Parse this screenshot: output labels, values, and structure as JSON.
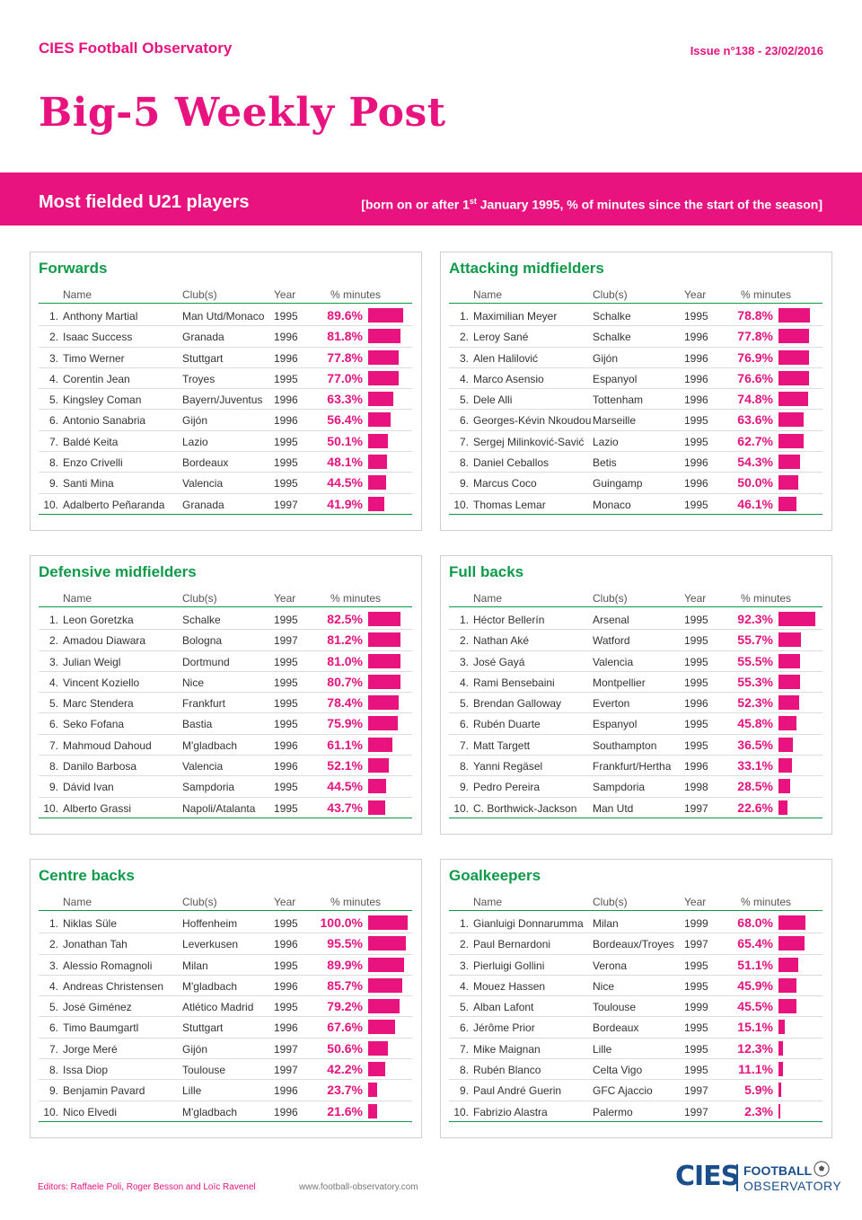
{
  "header": {
    "org": "CIES Football Observatory",
    "issue": "Issue n°138 - 23/02/2016",
    "title": "Big-5 Weekly Post"
  },
  "banner": {
    "title": "Most fielded U21 players",
    "sub_pre": "[born on or after 1",
    "sub_sup": "st",
    "sub_post": " January 1995, % of minutes since the start of the season]"
  },
  "columns": {
    "name": "Name",
    "club": "Club(s)",
    "year": "Year",
    "pct": "% minutes"
  },
  "sections": [
    {
      "title": "Forwards",
      "rows": [
        {
          "rank": "1.",
          "name": "Anthony Martial",
          "club": "Man Utd/Monaco",
          "year": "1995",
          "pct": "89.6%",
          "value": 89.6
        },
        {
          "rank": "2.",
          "name": "Isaac Success",
          "club": "Granada",
          "year": "1996",
          "pct": "81.8%",
          "value": 81.8
        },
        {
          "rank": "3.",
          "name": "Timo Werner",
          "club": "Stuttgart",
          "year": "1996",
          "pct": "77.8%",
          "value": 77.8
        },
        {
          "rank": "4.",
          "name": "Corentin Jean",
          "club": "Troyes",
          "year": "1995",
          "pct": "77.0%",
          "value": 77.0
        },
        {
          "rank": "5.",
          "name": "Kingsley Coman",
          "club": "Bayern/Juventus",
          "year": "1996",
          "pct": "63.3%",
          "value": 63.3
        },
        {
          "rank": "6.",
          "name": "Antonio Sanabria",
          "club": "Gijón",
          "year": "1996",
          "pct": "56.4%",
          "value": 56.4
        },
        {
          "rank": "7.",
          "name": "Baldé Keita",
          "club": "Lazio",
          "year": "1995",
          "pct": "50.1%",
          "value": 50.1
        },
        {
          "rank": "8.",
          "name": "Enzo Crivelli",
          "club": "Bordeaux",
          "year": "1995",
          "pct": "48.1%",
          "value": 48.1
        },
        {
          "rank": "9.",
          "name": "Santi Mina",
          "club": "Valencia",
          "year": "1995",
          "pct": "44.5%",
          "value": 44.5
        },
        {
          "rank": "10.",
          "name": "Adalberto Peñaranda",
          "club": "Granada",
          "year": "1997",
          "pct": "41.9%",
          "value": 41.9
        }
      ]
    },
    {
      "title": "Attacking midfielders",
      "rows": [
        {
          "rank": "1.",
          "name": "Maximilian Meyer",
          "club": "Schalke",
          "year": "1995",
          "pct": "78.8%",
          "value": 78.8
        },
        {
          "rank": "2.",
          "name": "Leroy Sané",
          "club": "Schalke",
          "year": "1996",
          "pct": "77.8%",
          "value": 77.8
        },
        {
          "rank": "3.",
          "name": "Alen Halilović",
          "club": "Gijón",
          "year": "1996",
          "pct": "76.9%",
          "value": 76.9
        },
        {
          "rank": "4.",
          "name": "Marco Asensio",
          "club": "Espanyol",
          "year": "1996",
          "pct": "76.6%",
          "value": 76.6
        },
        {
          "rank": "5.",
          "name": "Dele Alli",
          "club": "Tottenham",
          "year": "1996",
          "pct": "74.8%",
          "value": 74.8
        },
        {
          "rank": "6.",
          "name": "Georges-Kévin Nkoudou",
          "club": "Marseille",
          "year": "1995",
          "pct": "63.6%",
          "value": 63.6
        },
        {
          "rank": "7.",
          "name": "Sergej Milinković-Savić",
          "club": "Lazio",
          "year": "1995",
          "pct": "62.7%",
          "value": 62.7
        },
        {
          "rank": "8.",
          "name": "Daniel Ceballos",
          "club": "Betis",
          "year": "1996",
          "pct": "54.3%",
          "value": 54.3
        },
        {
          "rank": "9.",
          "name": "Marcus Coco",
          "club": "Guingamp",
          "year": "1996",
          "pct": "50.0%",
          "value": 50.0
        },
        {
          "rank": "10.",
          "name": "Thomas Lemar",
          "club": "Monaco",
          "year": "1995",
          "pct": "46.1%",
          "value": 46.1
        }
      ]
    },
    {
      "title": "Defensive midfielders",
      "rows": [
        {
          "rank": "1.",
          "name": "Leon Goretzka",
          "club": "Schalke",
          "year": "1995",
          "pct": "82.5%",
          "value": 82.5
        },
        {
          "rank": "2.",
          "name": "Amadou Diawara",
          "club": "Bologna",
          "year": "1997",
          "pct": "81.2%",
          "value": 81.2
        },
        {
          "rank": "3.",
          "name": "Julian Weigl",
          "club": "Dortmund",
          "year": "1995",
          "pct": "81.0%",
          "value": 81.0
        },
        {
          "rank": "4.",
          "name": "Vincent Koziello",
          "club": "Nice",
          "year": "1995",
          "pct": "80.7%",
          "value": 80.7
        },
        {
          "rank": "5.",
          "name": "Marc Stendera",
          "club": "Frankfurt",
          "year": "1995",
          "pct": "78.4%",
          "value": 78.4
        },
        {
          "rank": "6.",
          "name": "Seko Fofana",
          "club": "Bastia",
          "year": "1995",
          "pct": "75.9%",
          "value": 75.9
        },
        {
          "rank": "7.",
          "name": "Mahmoud Dahoud",
          "club": "M'gladbach",
          "year": "1996",
          "pct": "61.1%",
          "value": 61.1
        },
        {
          "rank": "8.",
          "name": "Danilo Barbosa",
          "club": "Valencia",
          "year": "1996",
          "pct": "52.1%",
          "value": 52.1
        },
        {
          "rank": "9.",
          "name": "Dávid Ivan",
          "club": "Sampdoria",
          "year": "1995",
          "pct": "44.5%",
          "value": 44.5
        },
        {
          "rank": "10.",
          "name": "Alberto Grassi",
          "club": "Napoli/Atalanta",
          "year": "1995",
          "pct": "43.7%",
          "value": 43.7
        }
      ]
    },
    {
      "title": "Full backs",
      "rows": [
        {
          "rank": "1.",
          "name": "Héctor Bellerín",
          "club": "Arsenal",
          "year": "1995",
          "pct": "92.3%",
          "value": 92.3
        },
        {
          "rank": "2.",
          "name": "Nathan Aké",
          "club": "Watford",
          "year": "1995",
          "pct": "55.7%",
          "value": 55.7
        },
        {
          "rank": "3.",
          "name": "José Gayá",
          "club": "Valencia",
          "year": "1995",
          "pct": "55.5%",
          "value": 55.5
        },
        {
          "rank": "4.",
          "name": "Rami Bensebaini",
          "club": "Montpellier",
          "year": "1995",
          "pct": "55.3%",
          "value": 55.3
        },
        {
          "rank": "5.",
          "name": "Brendan Galloway",
          "club": "Everton",
          "year": "1996",
          "pct": "52.3%",
          "value": 52.3
        },
        {
          "rank": "6.",
          "name": "Rubén Duarte",
          "club": "Espanyol",
          "year": "1995",
          "pct": "45.8%",
          "value": 45.8
        },
        {
          "rank": "7.",
          "name": "Matt Targett",
          "club": "Southampton",
          "year": "1995",
          "pct": "36.5%",
          "value": 36.5
        },
        {
          "rank": "8.",
          "name": "Yanni Regäsel",
          "club": "Frankfurt/Hertha",
          "year": "1996",
          "pct": "33.1%",
          "value": 33.1
        },
        {
          "rank": "9.",
          "name": "Pedro Pereira",
          "club": "Sampdoria",
          "year": "1998",
          "pct": "28.5%",
          "value": 28.5
        },
        {
          "rank": "10.",
          "name": "C. Borthwick-Jackson",
          "club": "Man Utd",
          "year": "1997",
          "pct": "22.6%",
          "value": 22.6
        }
      ]
    },
    {
      "title": "Centre backs",
      "rows": [
        {
          "rank": "1.",
          "name": "Niklas Süle",
          "club": "Hoffenheim",
          "year": "1995",
          "pct": "100.0%",
          "value": 100.0
        },
        {
          "rank": "2.",
          "name": "Jonathan Tah",
          "club": "Leverkusen",
          "year": "1996",
          "pct": "95.5%",
          "value": 95.5
        },
        {
          "rank": "3.",
          "name": "Alessio Romagnoli",
          "club": "Milan",
          "year": "1995",
          "pct": "89.9%",
          "value": 89.9
        },
        {
          "rank": "4.",
          "name": "Andreas Christensen",
          "club": "M'gladbach",
          "year": "1996",
          "pct": "85.7%",
          "value": 85.7
        },
        {
          "rank": "5.",
          "name": "José Giménez",
          "club": "Atlético Madrid",
          "year": "1995",
          "pct": "79.2%",
          "value": 79.2
        },
        {
          "rank": "6.",
          "name": "Timo Baumgartl",
          "club": "Stuttgart",
          "year": "1996",
          "pct": "67.6%",
          "value": 67.6
        },
        {
          "rank": "7.",
          "name": "Jorge Meré",
          "club": "Gijón",
          "year": "1997",
          "pct": "50.6%",
          "value": 50.6
        },
        {
          "rank": "8.",
          "name": "Issa Diop",
          "club": "Toulouse",
          "year": "1997",
          "pct": "42.2%",
          "value": 42.2
        },
        {
          "rank": "9.",
          "name": "Benjamin Pavard",
          "club": "Lille",
          "year": "1996",
          "pct": "23.7%",
          "value": 23.7
        },
        {
          "rank": "10.",
          "name": "Nico Elvedi",
          "club": "M'gladbach",
          "year": "1996",
          "pct": "21.6%",
          "value": 21.6
        }
      ]
    },
    {
      "title": "Goalkeepers",
      "rows": [
        {
          "rank": "1.",
          "name": "Gianluigi Donnarumma",
          "club": "Milan",
          "year": "1999",
          "pct": "68.0%",
          "value": 68.0
        },
        {
          "rank": "2.",
          "name": "Paul Bernardoni",
          "club": "Bordeaux/Troyes",
          "year": "1997",
          "pct": "65.4%",
          "value": 65.4
        },
        {
          "rank": "3.",
          "name": "Pierluigi Gollini",
          "club": "Verona",
          "year": "1995",
          "pct": "51.1%",
          "value": 51.1
        },
        {
          "rank": "4.",
          "name": "Mouez Hassen",
          "club": "Nice",
          "year": "1995",
          "pct": "45.9%",
          "value": 45.9
        },
        {
          "rank": "5.",
          "name": "Alban Lafont",
          "club": "Toulouse",
          "year": "1999",
          "pct": "45.5%",
          "value": 45.5
        },
        {
          "rank": "6.",
          "name": "Jérôme Prior",
          "club": "Bordeaux",
          "year": "1995",
          "pct": "15.1%",
          "value": 15.1
        },
        {
          "rank": "7.",
          "name": "Mike Maignan",
          "club": "Lille",
          "year": "1995",
          "pct": "12.3%",
          "value": 12.3
        },
        {
          "rank": "8.",
          "name": "Rubén Blanco",
          "club": "Celta Vigo",
          "year": "1995",
          "pct": "11.1%",
          "value": 11.1
        },
        {
          "rank": "9.",
          "name": "Paul André Guerin",
          "club": "GFC Ajaccio",
          "year": "1997",
          "pct": "5.9%",
          "value": 5.9
        },
        {
          "rank": "10.",
          "name": "Fabrizio Alastra",
          "club": "Palermo",
          "year": "1997",
          "pct": "2.3%",
          "value": 2.3
        }
      ]
    }
  ],
  "footer": {
    "editors": "Editors: Raffaele Poli, Roger Besson and Loïc Ravenel",
    "url": "www.football-observatory.com",
    "logo_mark": "CIES",
    "logo_line1": "FOOTBALL",
    "logo_line2": "OBSERVATORY"
  },
  "colors": {
    "accent": "#e8137f",
    "green": "#0f9a4a",
    "navy": "#1a4e8a"
  }
}
